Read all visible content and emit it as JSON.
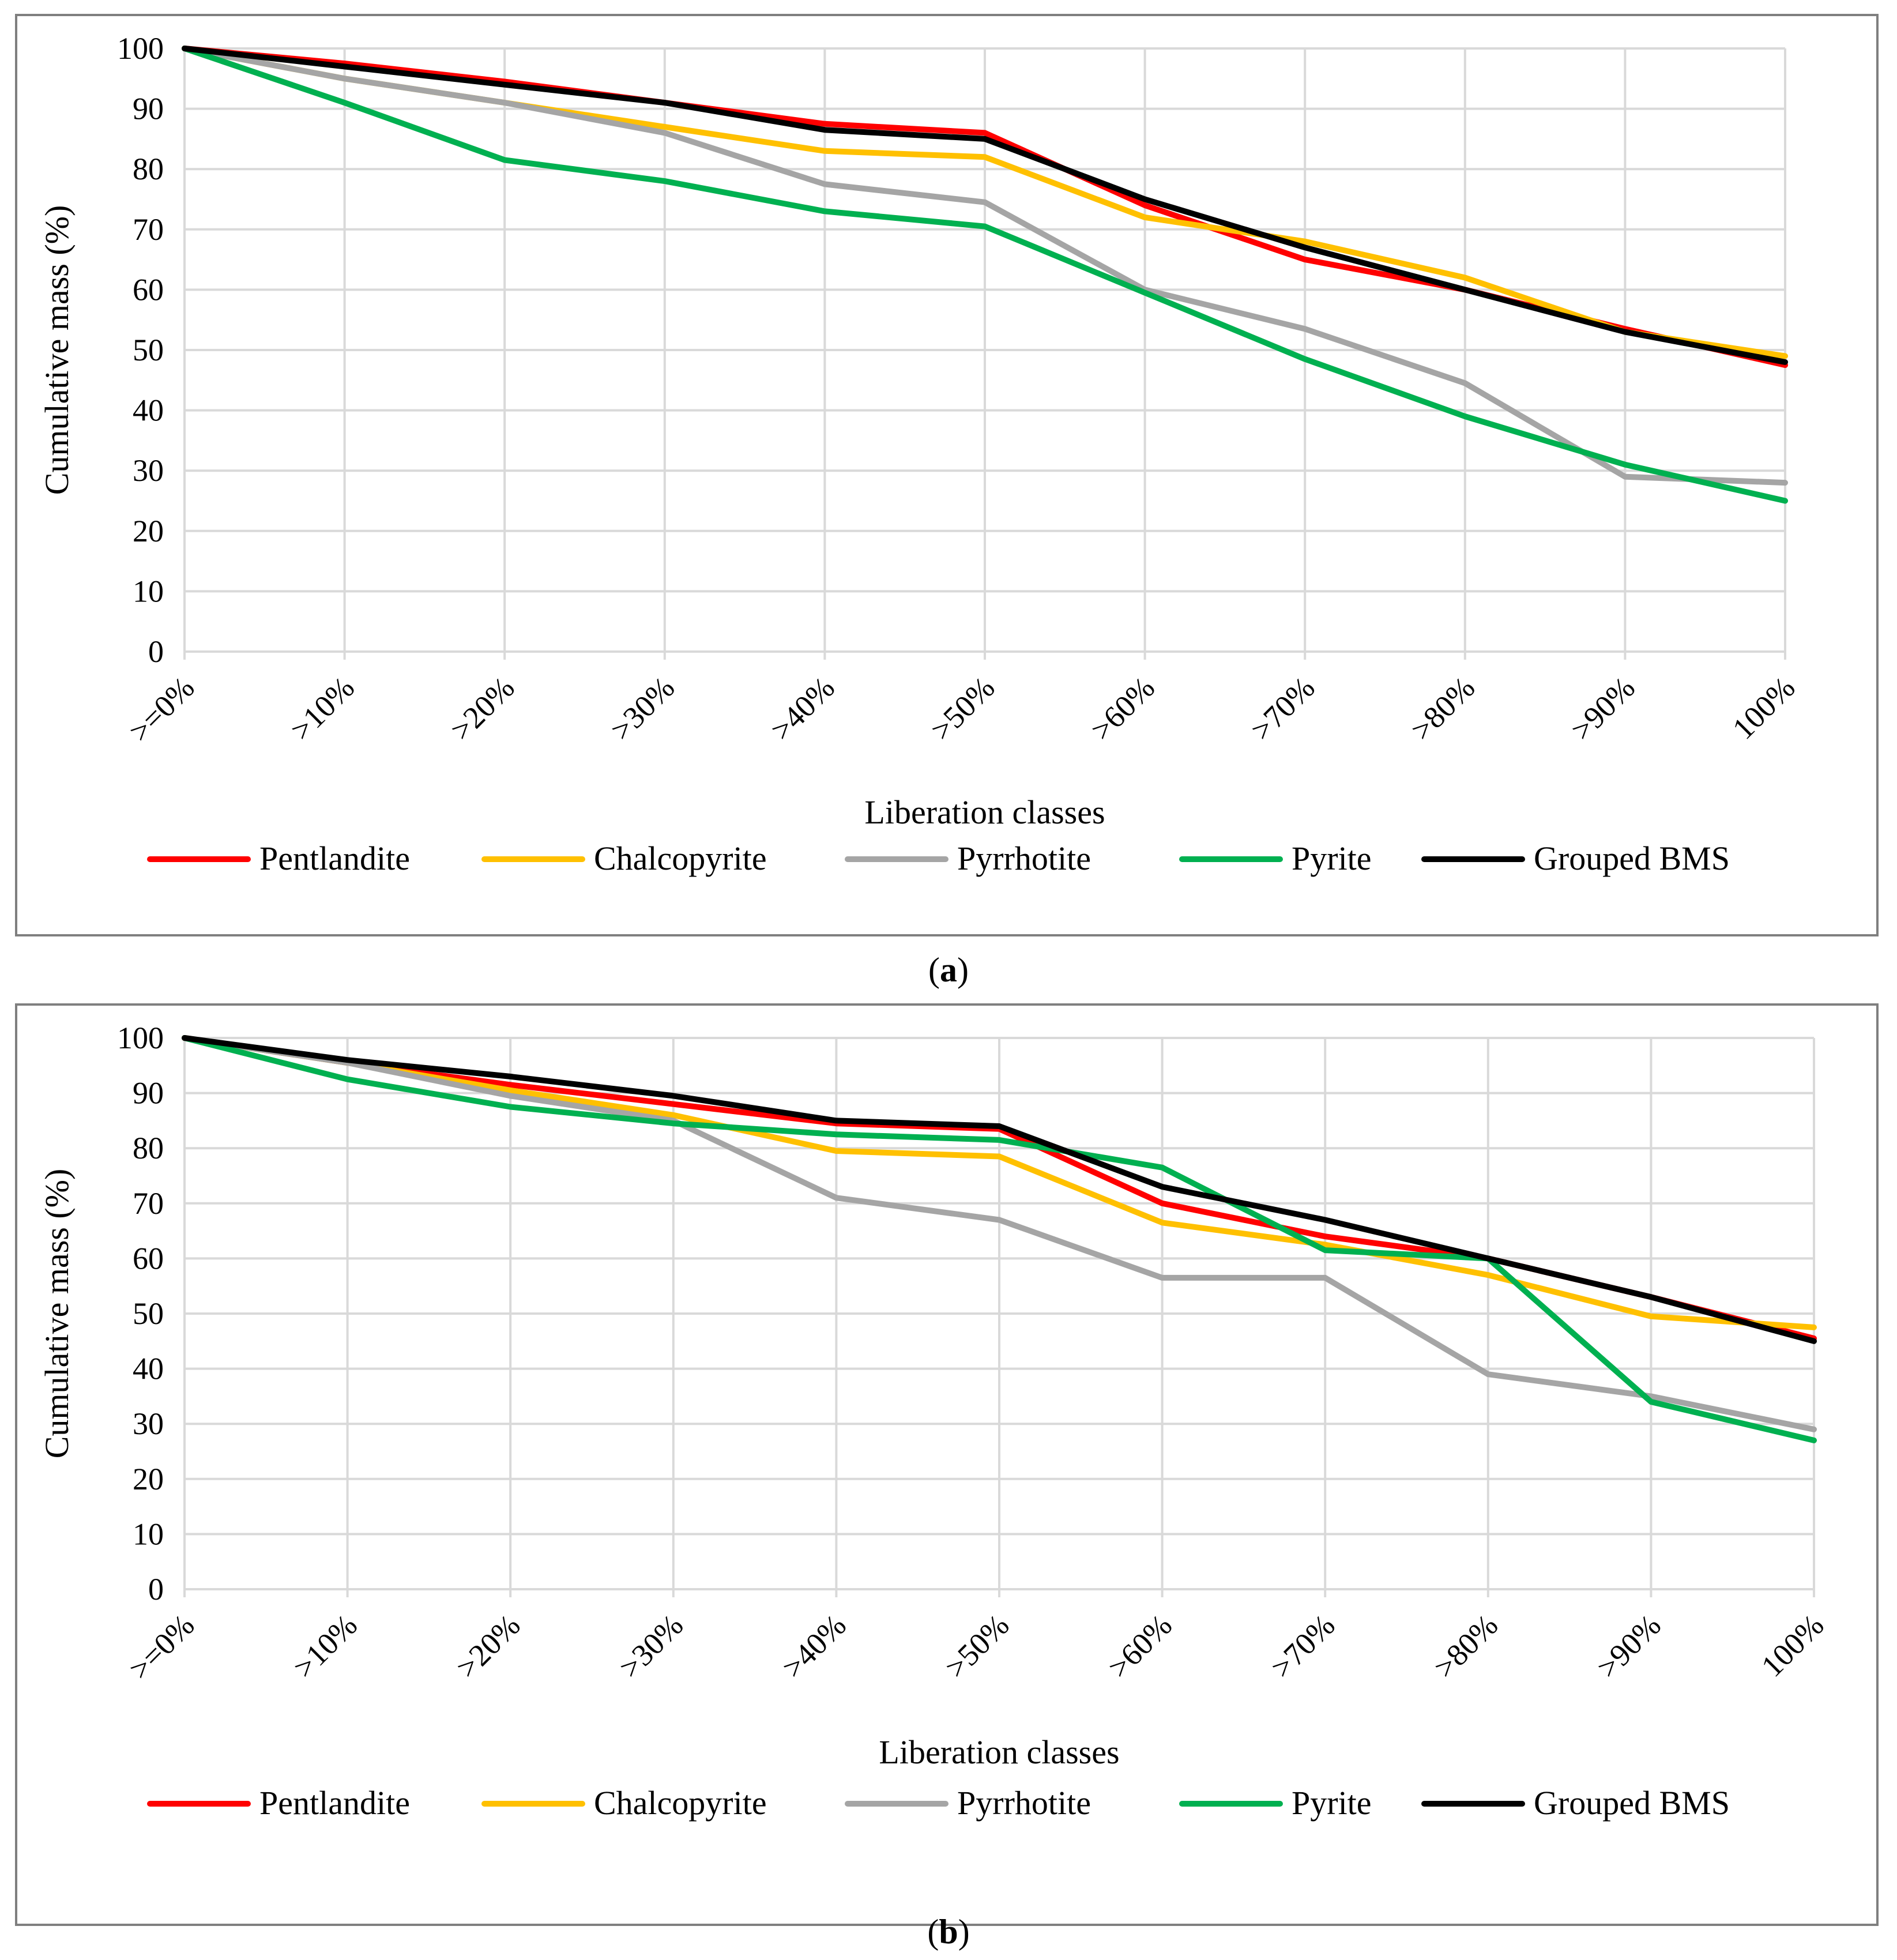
{
  "chart_data": [
    {
      "type": "line",
      "panel": "a",
      "caption_letter": "a",
      "xlabel": "Liberation classes",
      "ylabel": "Cumulative mass (%)",
      "ylim": [
        0,
        100
      ],
      "y_ticks": [
        "0",
        "10",
        "20",
        "30",
        "40",
        "50",
        "60",
        "70",
        "80",
        "90",
        "100"
      ],
      "categories": [
        ">=0%",
        ">10%",
        ">20%",
        ">30%",
        ">40%",
        ">50%",
        ">60%",
        ">70%",
        ">80%",
        ">90%",
        "100%"
      ],
      "grid": true,
      "legend_position": "bottom",
      "series": [
        {
          "name": "Pentlandite",
          "color": "#ff0000",
          "values": [
            100,
            97.5,
            94.5,
            91,
            87.5,
            86,
            74,
            65,
            60,
            53.5,
            47.5
          ]
        },
        {
          "name": "Chalcopyrite",
          "color": "#ffc000",
          "values": [
            100,
            95,
            91,
            87,
            83,
            82,
            72,
            68,
            62,
            53,
            49
          ]
        },
        {
          "name": "Pyrrhotite",
          "color": "#a5a5a5",
          "values": [
            100,
            95,
            91,
            86,
            77.5,
            74.5,
            60,
            53.5,
            44.5,
            29,
            28
          ]
        },
        {
          "name": "Pyrite",
          "color": "#00b050",
          "values": [
            100,
            91,
            81.5,
            78,
            73,
            70.5,
            59.5,
            48.5,
            39,
            31,
            25
          ]
        },
        {
          "name": "Grouped BMS",
          "color": "#000000",
          "values": [
            100,
            97,
            94,
            91,
            86.5,
            85,
            75,
            67,
            60,
            53,
            48
          ]
        }
      ]
    },
    {
      "type": "line",
      "panel": "b",
      "caption_letter": "b",
      "xlabel": "Liberation classes",
      "ylabel": "Cumulative mass (%)",
      "ylim": [
        0,
        100
      ],
      "y_ticks": [
        "0",
        "10",
        "20",
        "30",
        "40",
        "50",
        "60",
        "70",
        "80",
        "90",
        "100"
      ],
      "categories": [
        ">=0%",
        ">10%",
        ">20%",
        ">30%",
        ">40%",
        ">50%",
        ">60%",
        ">70%",
        ">80%",
        ">90%",
        "100%"
      ],
      "grid": true,
      "legend_position": "bottom",
      "series": [
        {
          "name": "Pentlandite",
          "color": "#ff0000",
          "values": [
            100,
            95.5,
            91.5,
            88,
            84.5,
            83.5,
            70,
            64,
            60,
            53,
            45.5
          ]
        },
        {
          "name": "Chalcopyrite",
          "color": "#ffc000",
          "values": [
            100,
            95.5,
            90.5,
            86,
            79.5,
            78.5,
            66.5,
            62.5,
            57,
            49.5,
            47.5
          ]
        },
        {
          "name": "Pyrrhotite",
          "color": "#a5a5a5",
          "values": [
            100,
            95.5,
            89.5,
            85,
            71,
            67,
            56.5,
            56.5,
            39,
            35,
            29
          ]
        },
        {
          "name": "Pyrite",
          "color": "#00b050",
          "values": [
            100,
            92.5,
            87.5,
            84.5,
            82.5,
            81.5,
            76.5,
            61.5,
            60,
            34,
            27
          ]
        },
        {
          "name": "Grouped BMS",
          "color": "#000000",
          "values": [
            100,
            96,
            93,
            89.5,
            85,
            84,
            73,
            67,
            60,
            53,
            45
          ]
        }
      ]
    }
  ]
}
